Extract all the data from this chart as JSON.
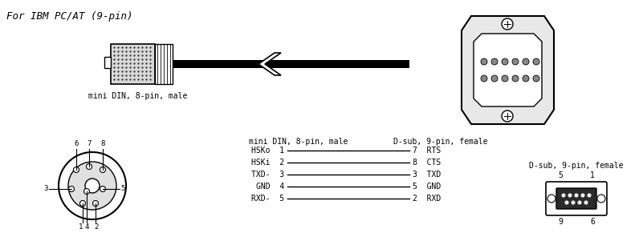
{
  "title": "For IBM PC/AT (9-pin)",
  "bg_color": "#ffffff",
  "text_color": "#000000",
  "label_mini_din_top": "mini DIN, 8-pin, male",
  "label_col1": "mini DIN, 8-pin, male",
  "label_col2": "D-sub, 9-pin, female",
  "label_dsub_small": "D-sub, 9-pin, female",
  "pinout_left": [
    "HSKo",
    "HSKi",
    "TXD-",
    "GND",
    "RXD-"
  ],
  "pinout_left_nums": [
    "1",
    "2",
    "3",
    "4",
    "5"
  ],
  "pinout_right_nums": [
    "7",
    "8",
    "3",
    "5",
    "2"
  ],
  "pinout_right": [
    "RTS",
    "CTS",
    "TXD",
    "GND",
    "RXD"
  ],
  "din_pin_labels": [
    "6",
    "7",
    "8",
    "3",
    "4",
    "5",
    "1",
    "2"
  ],
  "dsub_corner_nums": [
    "5",
    "1",
    "9",
    "6"
  ]
}
